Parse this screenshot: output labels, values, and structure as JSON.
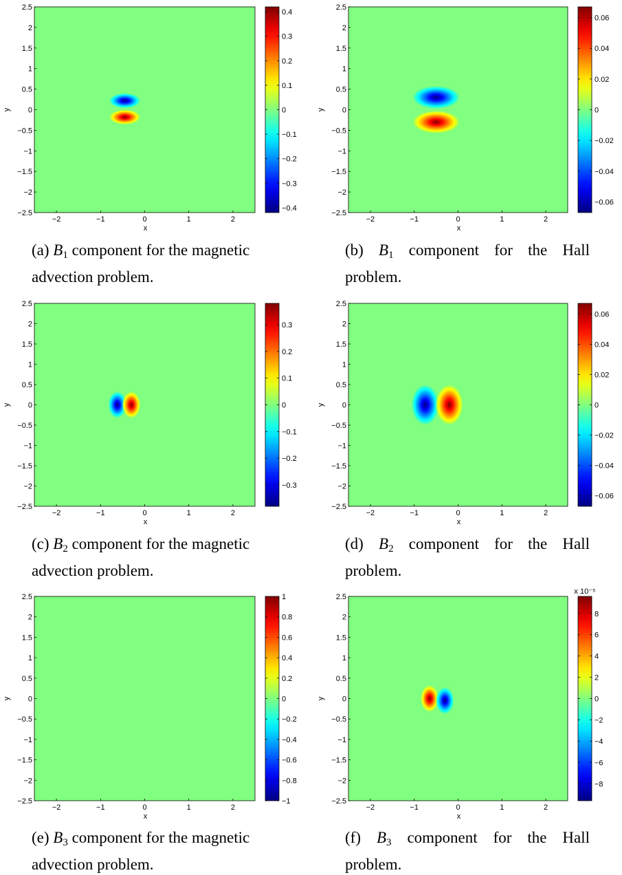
{
  "colormap": "jet",
  "colors": {
    "background_field": "#80ff80",
    "axes_frame": "#000000"
  },
  "chart_data": [
    {
      "id": "a",
      "type": "heatmap",
      "xlabel": "x",
      "ylabel": "y",
      "xlim": [
        -2.5,
        2.5
      ],
      "ylim": [
        -2.5,
        2.5
      ],
      "xticks": [
        "−2",
        "−1",
        "0",
        "1",
        "2"
      ],
      "yticks": [
        "−2.5",
        "−2",
        "−1.5",
        "−1",
        "−0.5",
        "0",
        "0.5",
        "1",
        "1.5",
        "2",
        "2.5"
      ],
      "clim": [
        -0.42,
        0.42
      ],
      "colorbar_ticks": [
        "−0.4",
        "−0.3",
        "−0.2",
        "−0.1",
        "0",
        "0.1",
        "0.2",
        "0.3",
        "0.4"
      ],
      "colorbar_exponent": "",
      "features": [
        {
          "x": -0.45,
          "y": 0.22,
          "value": -0.42
        },
        {
          "x": -0.45,
          "y": -0.18,
          "value": 0.42
        }
      ],
      "caption": {
        "label": "(a)",
        "var": "B",
        "sub": "1",
        "rest": " component for the magnetic advection problem."
      }
    },
    {
      "id": "b",
      "type": "heatmap",
      "xlabel": "x",
      "ylabel": "y",
      "xlim": [
        -2.5,
        2.5
      ],
      "ylim": [
        -2.5,
        2.5
      ],
      "xticks": [
        "−2",
        "−1",
        "0",
        "1",
        "2"
      ],
      "yticks": [
        "−2.5",
        "−2",
        "−1.5",
        "−1",
        "−0.5",
        "0",
        "0.5",
        "1",
        "1.5",
        "2",
        "2.5"
      ],
      "clim": [
        -0.067,
        0.067
      ],
      "colorbar_ticks": [
        "−0.06",
        "−0.04",
        "−0.02",
        "0",
        "0.02",
        "0.04",
        "0.06"
      ],
      "colorbar_exponent": "",
      "features": [
        {
          "x": -0.5,
          "y": 0.3,
          "value": -0.067
        },
        {
          "x": -0.5,
          "y": -0.3,
          "value": 0.067
        }
      ],
      "caption": {
        "label": "(b)",
        "var": "B",
        "sub": "1",
        "rest": " component for the Hall problem."
      }
    },
    {
      "id": "c",
      "type": "heatmap",
      "xlabel": "x",
      "ylabel": "y",
      "xlim": [
        -2.5,
        2.5
      ],
      "ylim": [
        -2.5,
        2.5
      ],
      "xticks": [
        "−2",
        "−1",
        "0",
        "1",
        "2"
      ],
      "yticks": [
        "−2.5",
        "−2",
        "−1.5",
        "−1",
        "−0.5",
        "0",
        "0.5",
        "1",
        "1.5",
        "2",
        "2.5"
      ],
      "clim": [
        -0.38,
        0.38
      ],
      "colorbar_ticks": [
        "−0.3",
        "−0.2",
        "−0.1",
        "0",
        "0.1",
        "0.2",
        "0.3"
      ],
      "colorbar_exponent": "",
      "features": [
        {
          "x": -0.62,
          "y": 0.0,
          "value": -0.38
        },
        {
          "x": -0.3,
          "y": 0.0,
          "value": 0.38
        }
      ],
      "caption": {
        "label": "(c)",
        "var": "B",
        "sub": "2",
        "rest": " component for the magnetic advection problem."
      }
    },
    {
      "id": "d",
      "type": "heatmap",
      "xlabel": "x",
      "ylabel": "y",
      "xlim": [
        -2.5,
        2.5
      ],
      "ylim": [
        -2.5,
        2.5
      ],
      "xticks": [
        "−2",
        "−1",
        "0",
        "1",
        "2"
      ],
      "yticks": [
        "−2.5",
        "−2",
        "−1.5",
        "−1",
        "−0.5",
        "0",
        "0.5",
        "1",
        "1.5",
        "2",
        "2.5"
      ],
      "clim": [
        -0.067,
        0.067
      ],
      "colorbar_ticks": [
        "−0.06",
        "−0.04",
        "−0.02",
        "0",
        "0.02",
        "0.04",
        "0.06"
      ],
      "colorbar_exponent": "",
      "features": [
        {
          "x": -0.75,
          "y": 0.0,
          "value": -0.067
        },
        {
          "x": -0.2,
          "y": 0.0,
          "value": 0.067
        }
      ],
      "caption": {
        "label": "(d)",
        "var": "B",
        "sub": "2",
        "rest": " component for the Hall problem."
      }
    },
    {
      "id": "e",
      "type": "heatmap",
      "xlabel": "x",
      "ylabel": "y",
      "xlim": [
        -2.5,
        2.5
      ],
      "ylim": [
        -2.5,
        2.5
      ],
      "xticks": [
        "−2",
        "−1",
        "0",
        "1",
        "2"
      ],
      "yticks": [
        "−2.5",
        "−2",
        "−1.5",
        "−1",
        "−0.5",
        "0",
        "0.5",
        "1",
        "1.5",
        "2",
        "2.5"
      ],
      "clim": [
        -1,
        1
      ],
      "colorbar_ticks": [
        "−1",
        "−0.8",
        "−0.6",
        "−0.4",
        "−0.2",
        "0",
        "0.2",
        "0.4",
        "0.6",
        "0.8",
        "1"
      ],
      "colorbar_exponent": "",
      "features": [],
      "caption": {
        "label": "(e)",
        "var": "B",
        "sub": "3",
        "rest": " component for the magnetic advection problem."
      }
    },
    {
      "id": "f",
      "type": "heatmap",
      "xlabel": "x",
      "ylabel": "y",
      "xlim": [
        -2.5,
        2.5
      ],
      "ylim": [
        -2.5,
        2.5
      ],
      "xticks": [
        "−2",
        "−1",
        "0",
        "1",
        "2"
      ],
      "yticks": [
        "−2.5",
        "−2",
        "−1.5",
        "−1",
        "−0.5",
        "0",
        "0.5",
        "1",
        "1.5",
        "2",
        "2.5"
      ],
      "clim": [
        -9.6,
        9.6
      ],
      "colorbar_ticks": [
        "−8",
        "−6",
        "−4",
        "−2",
        "0",
        "2",
        "4",
        "6",
        "8"
      ],
      "colorbar_exponent": "x 10⁻⁵",
      "features": [
        {
          "x": -0.65,
          "y": 0.0,
          "value": 9.6
        },
        {
          "x": -0.3,
          "y": -0.05,
          "value": -9.6
        }
      ],
      "caption": {
        "label": "(f)",
        "var": "B",
        "sub": "3",
        "rest": " component for the Hall problem."
      }
    }
  ]
}
